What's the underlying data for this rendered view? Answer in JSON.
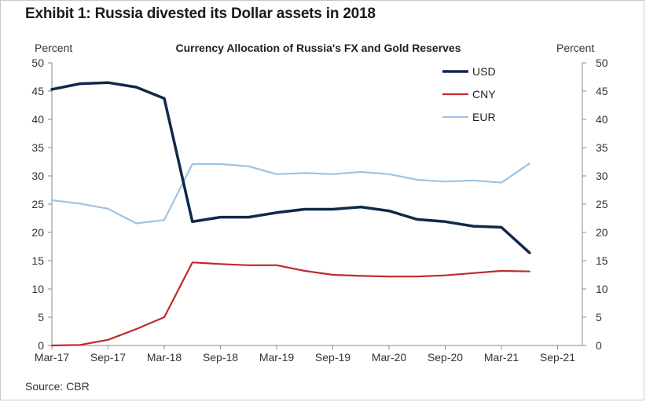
{
  "chart_data": {
    "type": "line",
    "exhibit_title": "Exhibit 1: Russia divested its Dollar assets in 2018",
    "title": "Currency Allocation  of Russia's FX and Gold Reserves",
    "ylabel_left": "Percent",
    "ylabel_right": "Percent",
    "source": "Source: CBR",
    "ylim": [
      0,
      50
    ],
    "yticks": [
      0,
      5,
      10,
      15,
      20,
      25,
      30,
      35,
      40,
      45,
      50
    ],
    "xticks": [
      "Mar-17",
      "Sep-17",
      "Mar-18",
      "Sep-18",
      "Mar-19",
      "Sep-19",
      "Mar-20",
      "Sep-20",
      "Mar-21",
      "Sep-21"
    ],
    "x": [
      "Mar-17",
      "Jun-17",
      "Sep-17",
      "Dec-17",
      "Mar-18",
      "Jun-18",
      "Sep-18",
      "Dec-18",
      "Mar-19",
      "Jun-19",
      "Sep-19",
      "Dec-19",
      "Mar-20",
      "Jun-20",
      "Sep-20",
      "Dec-20",
      "Mar-21",
      "Jun-21"
    ],
    "legend_position": "top-right",
    "grid": false,
    "series": [
      {
        "name": "USD",
        "color": "#0d2a4a",
        "values": [
          45.3,
          46.3,
          46.5,
          45.7,
          43.7,
          21.9,
          22.7,
          22.7,
          23.5,
          24.1,
          24.1,
          24.5,
          23.8,
          22.3,
          21.9,
          21.1,
          20.9,
          16.4
        ]
      },
      {
        "name": "CNY",
        "color": "#c0292b",
        "values": [
          0.0,
          0.1,
          1.0,
          2.9,
          5.0,
          14.7,
          14.4,
          14.2,
          14.2,
          13.2,
          12.5,
          12.3,
          12.2,
          12.2,
          12.4,
          12.8,
          13.2,
          13.1
        ]
      },
      {
        "name": "EUR",
        "color": "#9ec3e1",
        "values": [
          25.7,
          25.1,
          24.2,
          21.6,
          22.2,
          32.1,
          32.1,
          31.7,
          30.3,
          30.5,
          30.3,
          30.7,
          30.3,
          29.3,
          29.0,
          29.2,
          28.8,
          32.2
        ]
      }
    ]
  }
}
